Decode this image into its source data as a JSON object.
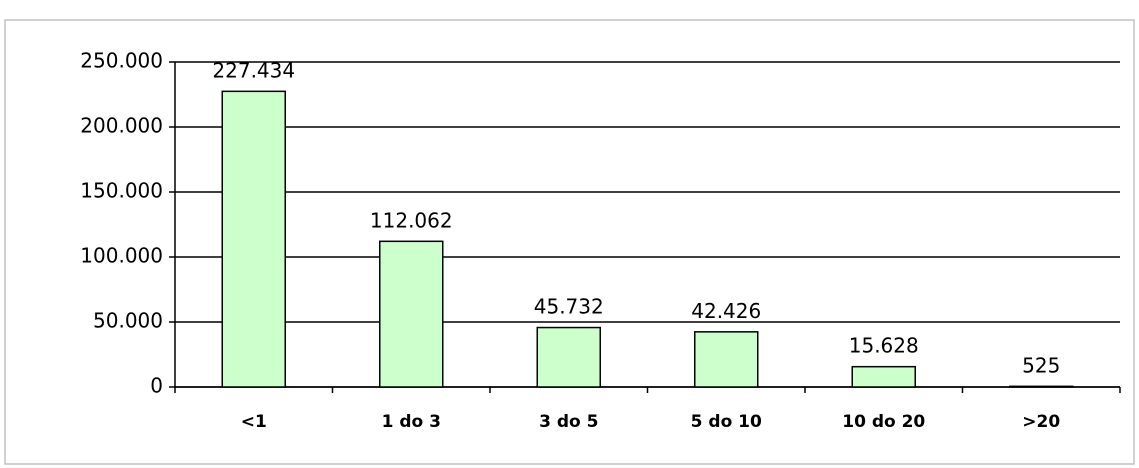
{
  "chart_data": {
    "type": "bar",
    "categories": [
      "<1",
      "1 do 3",
      "3 do 5",
      "5 do 10",
      "10 do 20",
      ">20"
    ],
    "values": [
      227434,
      112062,
      45732,
      42426,
      15628,
      525
    ],
    "value_labels": [
      "227.434",
      "112.062",
      "45.732",
      "42.426",
      "15.628",
      "525"
    ],
    "color": "#ccffcc",
    "ylim": [
      0,
      250000
    ],
    "yticks": [
      0,
      {
        "value": 50000,
        "label": "50.000"
      },
      {
        "value": 100000,
        "label": "100.000"
      },
      {
        "value": 150000,
        "label": "150.000"
      },
      {
        "value": 200000,
        "label": "200.000"
      },
      {
        "value": 250000,
        "label": "250.000"
      }
    ],
    "grid": true
  }
}
